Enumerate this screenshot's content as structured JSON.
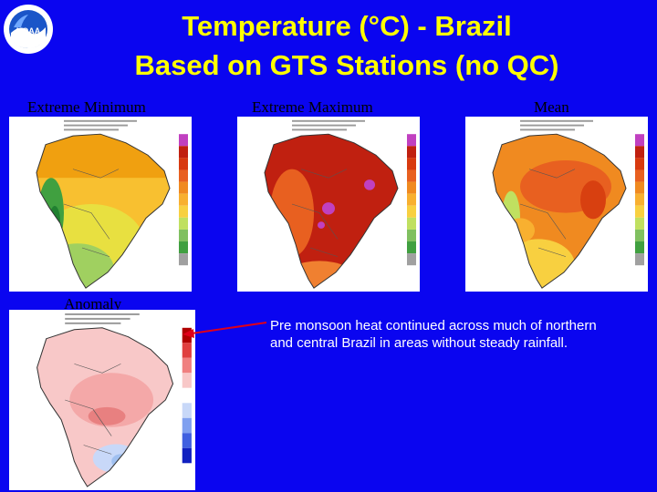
{
  "slide": {
    "title_line1": "Temperature (°C) - Brazil",
    "title_line2": "Based on GTS Stations (no QC)",
    "logo_text": "NOAA",
    "background_color": "#0a05f0",
    "title_color": "#ffff00"
  },
  "panels": [
    {
      "label": "Extreme Minimum",
      "map_style": "minimum"
    },
    {
      "label": "Extreme Maximum",
      "map_style": "maximum"
    },
    {
      "label": "Mean",
      "map_style": "mean"
    },
    {
      "label": "Anomaly",
      "map_style": "anomaly"
    }
  ],
  "caption": "Pre monsoon heat continued across much of northern and central Brazil in areas without steady rainfall.",
  "arrow": {
    "color": "#e0001a",
    "points_to": "anomaly-map"
  },
  "colors": {
    "minimum": [
      "#f0a010",
      "#f8c030",
      "#e8e040",
      "#a0d060",
      "#40a040",
      "#208030"
    ],
    "maximum": [
      "#c02010",
      "#d83a10",
      "#e86020",
      "#f08030",
      "#c040c0"
    ],
    "mean": [
      "#e86020",
      "#f08a20",
      "#f8b030",
      "#f8d040",
      "#c0e060"
    ],
    "anomaly": [
      "#f8c8c8",
      "#f4a8a8",
      "#e88080",
      "#c8d8f8",
      "#a0c0f0"
    ]
  }
}
